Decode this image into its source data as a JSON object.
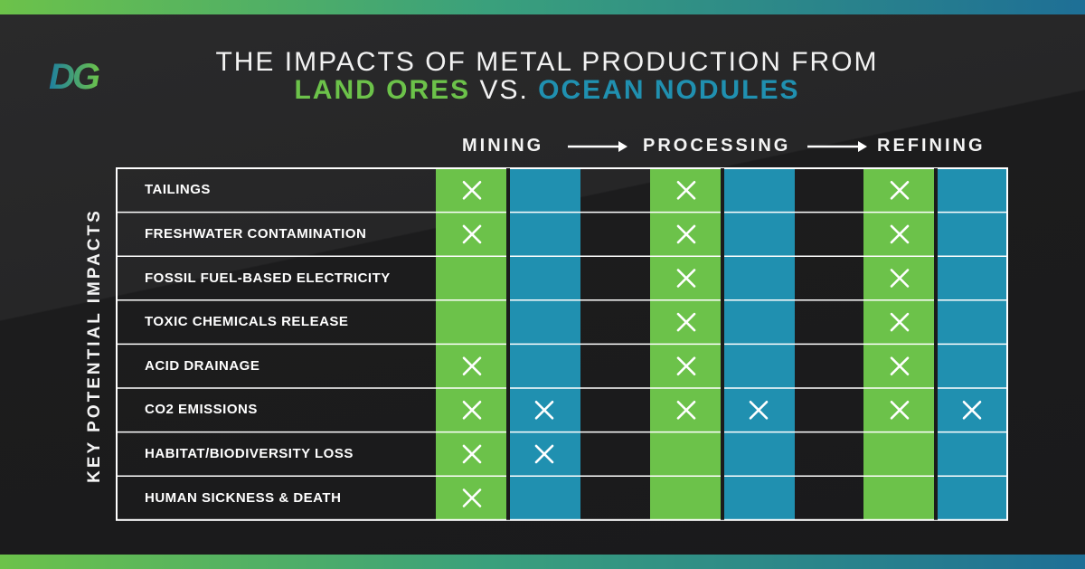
{
  "title": {
    "line1": "THE IMPACTS OF METAL PRODUCTION FROM",
    "land": "LAND ORES",
    "vs": " VS. ",
    "ocean": "OCEAN NODULES"
  },
  "logo": {
    "icon": "dg-logo",
    "text": "DG"
  },
  "side_label": "KEY POTENTIAL IMPACTS",
  "colors": {
    "land": "#6cc24a",
    "ocean": "#2090b0",
    "background": "#1b1b1c"
  },
  "chart_data": {
    "type": "table",
    "stages": [
      "MINING",
      "PROCESSING",
      "REFINING"
    ],
    "sources": [
      "LAND ORES",
      "OCEAN NODULES"
    ],
    "rows": [
      {
        "label": "TAILINGS",
        "marks": [
          [
            true,
            false
          ],
          [
            true,
            false
          ],
          [
            true,
            false
          ]
        ]
      },
      {
        "label": "FRESHWATER CONTAMINATION",
        "marks": [
          [
            true,
            false
          ],
          [
            true,
            false
          ],
          [
            true,
            false
          ]
        ]
      },
      {
        "label": "FOSSIL FUEL-BASED ELECTRICITY",
        "marks": [
          [
            false,
            false
          ],
          [
            true,
            false
          ],
          [
            true,
            false
          ]
        ]
      },
      {
        "label": "TOXIC CHEMICALS RELEASE",
        "marks": [
          [
            false,
            false
          ],
          [
            true,
            false
          ],
          [
            true,
            false
          ]
        ]
      },
      {
        "label": "ACID DRAINAGE",
        "marks": [
          [
            true,
            false
          ],
          [
            true,
            false
          ],
          [
            true,
            false
          ]
        ]
      },
      {
        "label": "CO2 EMISSIONS",
        "marks": [
          [
            true,
            true
          ],
          [
            true,
            true
          ],
          [
            true,
            true
          ]
        ]
      },
      {
        "label": "HABITAT/BIODIVERSITY LOSS",
        "marks": [
          [
            true,
            true
          ],
          [
            false,
            false
          ],
          [
            false,
            false
          ]
        ]
      },
      {
        "label": "HUMAN SICKNESS & DEATH",
        "marks": [
          [
            true,
            false
          ],
          [
            false,
            false
          ],
          [
            false,
            false
          ]
        ]
      }
    ]
  }
}
